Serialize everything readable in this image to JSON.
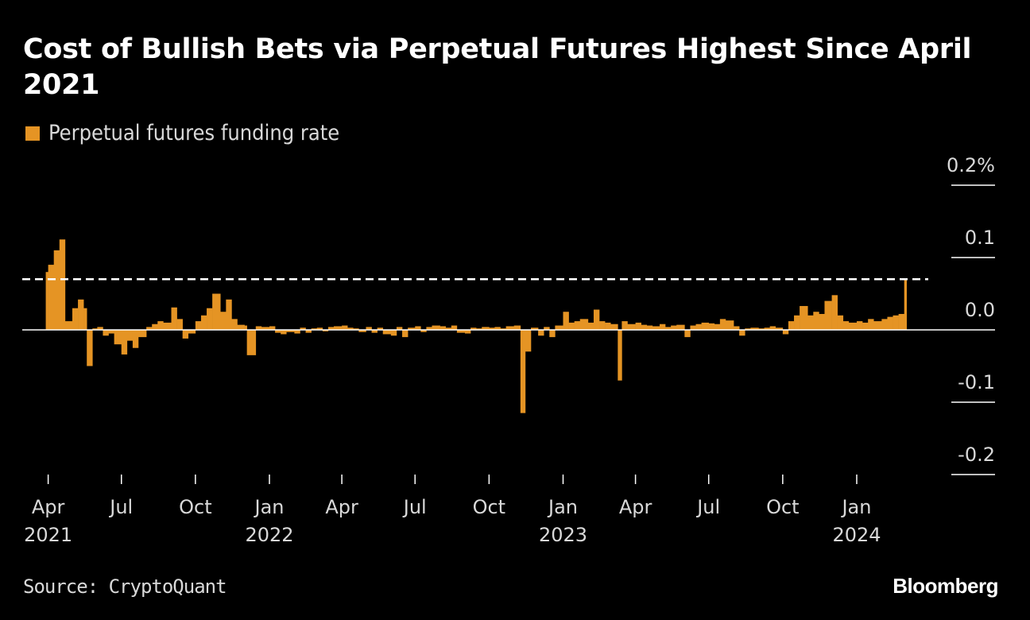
{
  "chart_data": {
    "type": "bar",
    "title": "Cost of Bullish Bets via Perpetual Futures Highest Since April 2021",
    "legend": [
      {
        "name": "Perpetual futures funding rate",
        "color": "#e59424"
      }
    ],
    "legend_placement": "top-left",
    "ylabel": "",
    "xlabel": "",
    "ylim": [
      -0.2,
      0.2
    ],
    "y_ticks": [
      {
        "value": 0.2,
        "label": "0.2%"
      },
      {
        "value": 0.1,
        "label": "0.1"
      },
      {
        "value": 0.0,
        "label": "0.0"
      },
      {
        "value": -0.1,
        "label": "-0.1"
      },
      {
        "value": -0.2,
        "label": "-0.2"
      }
    ],
    "x_ticks": [
      {
        "date": "2021-04-01",
        "label": "Apr",
        "year": "2021"
      },
      {
        "date": "2021-07-01",
        "label": "Jul",
        "year": ""
      },
      {
        "date": "2021-10-01",
        "label": "Oct",
        "year": ""
      },
      {
        "date": "2022-01-01",
        "label": "Jan",
        "year": "2022"
      },
      {
        "date": "2022-04-01",
        "label": "Apr",
        "year": ""
      },
      {
        "date": "2022-07-01",
        "label": "Jul",
        "year": ""
      },
      {
        "date": "2022-10-01",
        "label": "Oct",
        "year": ""
      },
      {
        "date": "2023-01-01",
        "label": "Jan",
        "year": "2023"
      },
      {
        "date": "2023-04-01",
        "label": "Apr",
        "year": ""
      },
      {
        "date": "2023-07-01",
        "label": "Jul",
        "year": ""
      },
      {
        "date": "2023-10-01",
        "label": "Oct",
        "year": ""
      },
      {
        "date": "2024-01-01",
        "label": "Jan",
        "year": "2024"
      }
    ],
    "reference_line": {
      "value": 0.07,
      "style": "dashed",
      "color": "#ffffff"
    },
    "grid": false,
    "series": [
      {
        "name": "Perpetual futures funding rate",
        "color": "#e59424",
        "points": [
          [
            "2021-03-29",
            0.08
          ],
          [
            "2021-04-01",
            0.09
          ],
          [
            "2021-04-08",
            0.11
          ],
          [
            "2021-04-15",
            0.125
          ],
          [
            "2021-04-22",
            0.012
          ],
          [
            "2021-05-01",
            0.03
          ],
          [
            "2021-05-08",
            0.042
          ],
          [
            "2021-05-15",
            0.03
          ],
          [
            "2021-05-19",
            -0.05
          ],
          [
            "2021-05-26",
            0.002
          ],
          [
            "2021-06-01",
            0.004
          ],
          [
            "2021-06-08",
            -0.008
          ],
          [
            "2021-06-15",
            -0.005
          ],
          [
            "2021-06-22",
            -0.02
          ],
          [
            "2021-07-01",
            -0.034
          ],
          [
            "2021-07-08",
            -0.015
          ],
          [
            "2021-07-15",
            -0.025
          ],
          [
            "2021-07-22",
            -0.01
          ],
          [
            "2021-08-01",
            0.004
          ],
          [
            "2021-08-08",
            0.008
          ],
          [
            "2021-08-15",
            0.012
          ],
          [
            "2021-08-22",
            0.01
          ],
          [
            "2021-09-01",
            0.031
          ],
          [
            "2021-09-08",
            0.015
          ],
          [
            "2021-09-15",
            -0.012
          ],
          [
            "2021-09-22",
            -0.005
          ],
          [
            "2021-10-01",
            0.012
          ],
          [
            "2021-10-08",
            0.02
          ],
          [
            "2021-10-15",
            0.03
          ],
          [
            "2021-10-22",
            0.05
          ],
          [
            "2021-11-01",
            0.025
          ],
          [
            "2021-11-08",
            0.042
          ],
          [
            "2021-11-15",
            0.015
          ],
          [
            "2021-11-22",
            0.007
          ],
          [
            "2021-12-01",
            0.006
          ],
          [
            "2021-12-04",
            -0.035
          ],
          [
            "2021-12-15",
            0.005
          ],
          [
            "2021-12-22",
            0.004
          ],
          [
            "2022-01-01",
            0.005
          ],
          [
            "2022-01-08",
            -0.004
          ],
          [
            "2022-01-15",
            -0.006
          ],
          [
            "2022-01-22",
            -0.003
          ],
          [
            "2022-02-01",
            -0.005
          ],
          [
            "2022-02-08",
            0.003
          ],
          [
            "2022-02-15",
            -0.004
          ],
          [
            "2022-02-22",
            0.002
          ],
          [
            "2022-03-01",
            0.003
          ],
          [
            "2022-03-08",
            -0.002
          ],
          [
            "2022-03-15",
            0.004
          ],
          [
            "2022-03-22",
            0.005
          ],
          [
            "2022-04-01",
            0.006
          ],
          [
            "2022-04-08",
            0.003
          ],
          [
            "2022-04-15",
            0.002
          ],
          [
            "2022-04-22",
            -0.003
          ],
          [
            "2022-05-01",
            0.004
          ],
          [
            "2022-05-08",
            -0.004
          ],
          [
            "2022-05-15",
            0.003
          ],
          [
            "2022-05-22",
            -0.006
          ],
          [
            "2022-06-01",
            -0.008
          ],
          [
            "2022-06-08",
            0.004
          ],
          [
            "2022-06-15",
            -0.01
          ],
          [
            "2022-06-22",
            0.003
          ],
          [
            "2022-07-01",
            0.005
          ],
          [
            "2022-07-08",
            -0.003
          ],
          [
            "2022-07-15",
            0.004
          ],
          [
            "2022-07-22",
            0.006
          ],
          [
            "2022-08-01",
            0.005
          ],
          [
            "2022-08-08",
            0.003
          ],
          [
            "2022-08-15",
            0.006
          ],
          [
            "2022-08-22",
            -0.004
          ],
          [
            "2022-09-01",
            -0.005
          ],
          [
            "2022-09-08",
            0.003
          ],
          [
            "2022-09-15",
            0.002
          ],
          [
            "2022-09-22",
            0.004
          ],
          [
            "2022-10-01",
            0.003
          ],
          [
            "2022-10-08",
            0.004
          ],
          [
            "2022-10-15",
            0.002
          ],
          [
            "2022-10-22",
            0.005
          ],
          [
            "2022-11-01",
            0.006
          ],
          [
            "2022-11-09",
            -0.115
          ],
          [
            "2022-11-15",
            -0.03
          ],
          [
            "2022-11-22",
            0.003
          ],
          [
            "2022-12-01",
            -0.008
          ],
          [
            "2022-12-08",
            0.004
          ],
          [
            "2022-12-15",
            -0.01
          ],
          [
            "2022-12-22",
            0.006
          ],
          [
            "2023-01-01",
            0.025
          ],
          [
            "2023-01-08",
            0.01
          ],
          [
            "2023-01-15",
            0.012
          ],
          [
            "2023-01-22",
            0.015
          ],
          [
            "2023-02-01",
            0.01
          ],
          [
            "2023-02-08",
            0.028
          ],
          [
            "2023-02-15",
            0.012
          ],
          [
            "2023-02-22",
            0.01
          ],
          [
            "2023-03-01",
            0.008
          ],
          [
            "2023-03-10",
            -0.07
          ],
          [
            "2023-03-15",
            0.012
          ],
          [
            "2023-03-22",
            0.008
          ],
          [
            "2023-04-01",
            0.01
          ],
          [
            "2023-04-08",
            0.007
          ],
          [
            "2023-04-15",
            0.006
          ],
          [
            "2023-04-22",
            0.005
          ],
          [
            "2023-05-01",
            0.008
          ],
          [
            "2023-05-08",
            0.004
          ],
          [
            "2023-05-15",
            0.006
          ],
          [
            "2023-05-22",
            0.007
          ],
          [
            "2023-06-01",
            -0.01
          ],
          [
            "2023-06-08",
            0.006
          ],
          [
            "2023-06-15",
            0.008
          ],
          [
            "2023-06-22",
            0.01
          ],
          [
            "2023-07-01",
            0.009
          ],
          [
            "2023-07-08",
            0.008
          ],
          [
            "2023-07-15",
            0.015
          ],
          [
            "2023-07-22",
            0.013
          ],
          [
            "2023-08-01",
            0.005
          ],
          [
            "2023-08-08",
            -0.008
          ],
          [
            "2023-08-15",
            0.002
          ],
          [
            "2023-08-22",
            0.003
          ],
          [
            "2023-09-01",
            0.002
          ],
          [
            "2023-09-08",
            0.003
          ],
          [
            "2023-09-15",
            0.005
          ],
          [
            "2023-09-22",
            0.003
          ],
          [
            "2023-10-01",
            -0.006
          ],
          [
            "2023-10-08",
            0.012
          ],
          [
            "2023-10-15",
            0.02
          ],
          [
            "2023-10-22",
            0.033
          ],
          [
            "2023-11-01",
            0.02
          ],
          [
            "2023-11-08",
            0.025
          ],
          [
            "2023-11-15",
            0.022
          ],
          [
            "2023-11-22",
            0.04
          ],
          [
            "2023-12-01",
            0.048
          ],
          [
            "2023-12-08",
            0.02
          ],
          [
            "2023-12-15",
            0.012
          ],
          [
            "2023-12-22",
            0.01
          ],
          [
            "2024-01-01",
            0.012
          ],
          [
            "2024-01-08",
            0.01
          ],
          [
            "2024-01-15",
            0.015
          ],
          [
            "2024-01-22",
            0.012
          ],
          [
            "2024-02-01",
            0.015
          ],
          [
            "2024-02-08",
            0.018
          ],
          [
            "2024-02-15",
            0.02
          ],
          [
            "2024-02-22",
            0.022
          ],
          [
            "2024-02-29",
            0.07
          ]
        ]
      }
    ],
    "source": "Source: CryptoQuant",
    "logo": "Bloomberg"
  }
}
